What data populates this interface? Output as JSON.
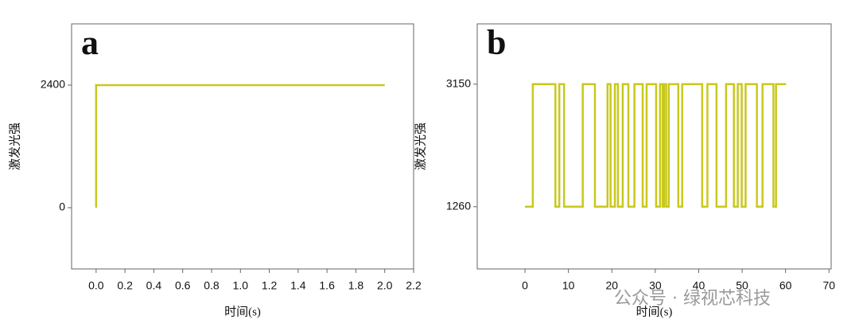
{
  "chart_data": [
    {
      "type": "line",
      "label": "a",
      "xlabel": "时间(s)",
      "ylabel": "激发光强",
      "color": "#c8c81e",
      "xlim": [
        -0.17,
        2.2
      ],
      "ylim": [
        -1200,
        3600
      ],
      "xticks": [
        {
          "value": 0,
          "label": "0.0"
        },
        0.2,
        0.4,
        0.6,
        0.8,
        {
          "value": 1,
          "label": "1.0"
        },
        1.2,
        1.4,
        1.6,
        1.8,
        {
          "value": 2,
          "label": "2.0"
        },
        2.2
      ],
      "yticks": [
        0,
        2400
      ],
      "x": [
        0,
        0,
        2.0
      ],
      "values": [
        0,
        2400,
        2400
      ]
    },
    {
      "type": "line",
      "label": "b",
      "xlabel": "时间(s)",
      "ylabel": "激发光强",
      "color": "#c8c81e",
      "xlim": [
        -11,
        70.5
      ],
      "ylim": [
        300,
        4080
      ],
      "xticks": [
        0,
        10,
        20,
        30,
        40,
        50,
        60,
        70
      ],
      "yticks": [
        1260,
        3150
      ],
      "x": [
        0,
        1.8,
        1.8,
        7.0,
        7.0,
        7.9,
        7.9,
        9.0,
        9.0,
        13.3,
        13.3,
        16.1,
        16.1,
        19.0,
        19.0,
        19.7,
        19.7,
        20.7,
        20.7,
        21.4,
        21.4,
        22.5,
        22.5,
        23.8,
        23.8,
        25.2,
        25.2,
        27.1,
        27.1,
        28.0,
        28.0,
        30.2,
        30.2,
        31.1,
        31.1,
        31.7,
        31.7,
        32.0,
        32.0,
        32.5,
        32.5,
        33.1,
        33.1,
        35.3,
        35.3,
        36.2,
        36.2,
        40.8,
        40.8,
        42.0,
        42.0,
        44.1,
        44.1,
        46.3,
        46.3,
        48.1,
        48.1,
        49.0,
        49.0,
        49.9,
        49.9,
        50.8,
        50.8,
        53.4,
        53.4,
        54.7,
        54.7,
        57.2,
        57.2,
        57.8,
        57.8,
        60.1
      ],
      "values": [
        1260,
        1260,
        3150,
        3150,
        1260,
        1260,
        3150,
        3150,
        1260,
        1260,
        3150,
        3150,
        1260,
        1260,
        3150,
        3150,
        1260,
        1260,
        3150,
        3150,
        1260,
        1260,
        3150,
        3150,
        1260,
        1260,
        3150,
        3150,
        1260,
        1260,
        3150,
        3150,
        1260,
        1260,
        3150,
        3150,
        1260,
        1260,
        3150,
        3150,
        1260,
        1260,
        3150,
        3150,
        1260,
        1260,
        3150,
        3150,
        1260,
        1260,
        3150,
        3150,
        1260,
        1260,
        3150,
        3150,
        1260,
        1260,
        3150,
        3150,
        1260,
        1260,
        3150,
        3150,
        1260,
        1260,
        3150,
        3150,
        1260,
        1260,
        3150,
        3150
      ]
    }
  ],
  "watermark": "公众号 · 绿视芯科技"
}
